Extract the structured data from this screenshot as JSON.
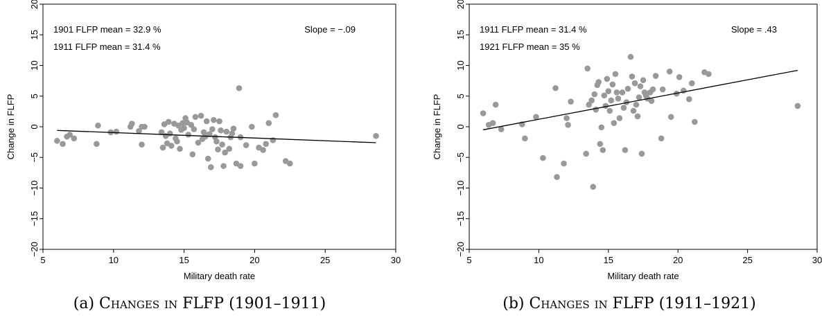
{
  "chart_data": [
    {
      "id": "a",
      "type": "scatter",
      "xlabel": "Military death rate",
      "ylabel": "Change in FLFP",
      "xlim": [
        5,
        30
      ],
      "ylim": [
        -20,
        20
      ],
      "xticks": [
        5,
        10,
        15,
        20,
        25,
        30
      ],
      "yticks": [
        -20,
        -15,
        -10,
        -5,
        0,
        5,
        10,
        15,
        20
      ],
      "annotations": {
        "mean1": "1901 FLFP mean = 32.9 %",
        "mean2": "1911 FLFP mean = 31.4 %",
        "slope": "Slope = −.09"
      },
      "fit_line": {
        "x": [
          6.0,
          28.6
        ],
        "y": [
          -0.6,
          -2.6
        ]
      },
      "points": [
        [
          6.0,
          -2.3
        ],
        [
          6.4,
          -2.8
        ],
        [
          6.7,
          -1.6
        ],
        [
          6.9,
          -1.3
        ],
        [
          7.2,
          -1.9
        ],
        [
          8.8,
          -2.8
        ],
        [
          8.9,
          0.2
        ],
        [
          9.8,
          -0.9
        ],
        [
          10.2,
          -0.8
        ],
        [
          11.2,
          0.0
        ],
        [
          11.3,
          0.5
        ],
        [
          11.8,
          -0.7
        ],
        [
          12.0,
          -2.9
        ],
        [
          12.0,
          0.0
        ],
        [
          12.2,
          0.0
        ],
        [
          13.4,
          -0.9
        ],
        [
          13.5,
          -3.4
        ],
        [
          13.6,
          0.4
        ],
        [
          13.7,
          -1.5
        ],
        [
          13.8,
          -2.7
        ],
        [
          13.9,
          0.8
        ],
        [
          14.0,
          -1.1
        ],
        [
          14.1,
          -3.1
        ],
        [
          14.3,
          0.5
        ],
        [
          14.4,
          -1.9
        ],
        [
          14.5,
          -2.4
        ],
        [
          14.6,
          0.2
        ],
        [
          14.7,
          -3.6
        ],
        [
          14.8,
          -0.5
        ],
        [
          14.9,
          0.6
        ],
        [
          15.0,
          -0.2
        ],
        [
          15.1,
          1.4
        ],
        [
          15.2,
          0.7
        ],
        [
          15.3,
          -1.3
        ],
        [
          15.5,
          0.3
        ],
        [
          15.6,
          -4.5
        ],
        [
          15.7,
          -0.4
        ],
        [
          15.8,
          1.6
        ],
        [
          16.0,
          -2.6
        ],
        [
          16.2,
          1.8
        ],
        [
          16.3,
          -2.0
        ],
        [
          16.4,
          -0.9
        ],
        [
          16.5,
          -1.6
        ],
        [
          16.6,
          0.9
        ],
        [
          16.7,
          -5.2
        ],
        [
          16.8,
          -1.2
        ],
        [
          16.9,
          -6.6
        ],
        [
          17.0,
          -0.4
        ],
        [
          17.1,
          1.1
        ],
        [
          17.2,
          -1.7
        ],
        [
          17.3,
          -2.4
        ],
        [
          17.4,
          -3.7
        ],
        [
          17.5,
          0.9
        ],
        [
          17.6,
          -0.6
        ],
        [
          17.7,
          -2.9
        ],
        [
          17.8,
          -6.4
        ],
        [
          17.9,
          -4.2
        ],
        [
          18.0,
          -0.8
        ],
        [
          18.2,
          -3.6
        ],
        [
          18.3,
          -1.7
        ],
        [
          18.4,
          -1.1
        ],
        [
          18.5,
          -0.3
        ],
        [
          18.7,
          -6.0
        ],
        [
          18.9,
          6.3
        ],
        [
          19.0,
          -6.4
        ],
        [
          19.0,
          -1.7
        ],
        [
          19.4,
          -3.0
        ],
        [
          19.8,
          0.0
        ],
        [
          20.0,
          -6.0
        ],
        [
          20.3,
          -3.4
        ],
        [
          20.6,
          -3.8
        ],
        [
          20.8,
          -2.8
        ],
        [
          21.0,
          0.6
        ],
        [
          21.3,
          -2.2
        ],
        [
          21.5,
          1.9
        ],
        [
          22.2,
          -5.6
        ],
        [
          22.5,
          -6.0
        ],
        [
          28.6,
          -1.5
        ]
      ]
    },
    {
      "id": "b",
      "type": "scatter",
      "xlabel": "Military death rate",
      "ylabel": "Change in FLFP",
      "xlim": [
        5,
        30
      ],
      "ylim": [
        -20,
        20
      ],
      "xticks": [
        5,
        10,
        15,
        20,
        25,
        30
      ],
      "yticks": [
        -20,
        -15,
        -10,
        -5,
        0,
        5,
        10,
        15,
        20
      ],
      "annotations": {
        "mean1": "1911 FLFP mean = 31.4 %",
        "mean2": "1921 FLFP mean = 35 %",
        "slope": "Slope = .43"
      },
      "fit_line": {
        "x": [
          6.0,
          28.6
        ],
        "y": [
          -0.5,
          9.2
        ]
      },
      "points": [
        [
          6.0,
          2.2
        ],
        [
          6.4,
          0.3
        ],
        [
          6.7,
          0.6
        ],
        [
          6.9,
          3.6
        ],
        [
          7.3,
          -0.4
        ],
        [
          8.8,
          0.4
        ],
        [
          9.0,
          -1.9
        ],
        [
          9.8,
          1.6
        ],
        [
          10.3,
          -5.1
        ],
        [
          11.2,
          6.3
        ],
        [
          11.3,
          -8.2
        ],
        [
          11.8,
          -6.0
        ],
        [
          12.0,
          1.4
        ],
        [
          12.1,
          0.3
        ],
        [
          12.3,
          4.1
        ],
        [
          13.4,
          -4.4
        ],
        [
          13.5,
          9.5
        ],
        [
          13.6,
          3.6
        ],
        [
          13.8,
          4.3
        ],
        [
          13.9,
          -9.8
        ],
        [
          14.0,
          5.3
        ],
        [
          14.1,
          2.8
        ],
        [
          14.2,
          6.8
        ],
        [
          14.3,
          7.3
        ],
        [
          14.4,
          -2.8
        ],
        [
          14.5,
          -0.1
        ],
        [
          14.6,
          -3.8
        ],
        [
          14.7,
          5.1
        ],
        [
          14.8,
          3.4
        ],
        [
          14.9,
          7.8
        ],
        [
          15.0,
          5.8
        ],
        [
          15.1,
          2.6
        ],
        [
          15.2,
          4.3
        ],
        [
          15.3,
          6.9
        ],
        [
          15.4,
          0.6
        ],
        [
          15.5,
          8.6
        ],
        [
          15.6,
          5.6
        ],
        [
          15.7,
          4.6
        ],
        [
          15.8,
          1.4
        ],
        [
          16.0,
          5.6
        ],
        [
          16.1,
          3.1
        ],
        [
          16.2,
          -3.8
        ],
        [
          16.3,
          4.0
        ],
        [
          16.4,
          6.2
        ],
        [
          16.6,
          11.4
        ],
        [
          16.7,
          8.2
        ],
        [
          16.8,
          2.6
        ],
        [
          16.9,
          7.1
        ],
        [
          17.0,
          3.6
        ],
        [
          17.1,
          1.7
        ],
        [
          17.2,
          4.8
        ],
        [
          17.3,
          6.6
        ],
        [
          17.4,
          -4.4
        ],
        [
          17.5,
          7.6
        ],
        [
          17.6,
          5.6
        ],
        [
          17.7,
          5.1
        ],
        [
          17.8,
          4.6
        ],
        [
          18.0,
          5.6
        ],
        [
          18.1,
          4.2
        ],
        [
          18.2,
          6.1
        ],
        [
          18.4,
          8.3
        ],
        [
          18.8,
          -1.9
        ],
        [
          18.9,
          6.1
        ],
        [
          19.4,
          9.0
        ],
        [
          19.5,
          1.6
        ],
        [
          19.9,
          5.4
        ],
        [
          20.1,
          8.1
        ],
        [
          20.4,
          5.9
        ],
        [
          20.8,
          4.5
        ],
        [
          21.0,
          7.1
        ],
        [
          21.2,
          0.8
        ],
        [
          21.9,
          8.9
        ],
        [
          22.2,
          8.6
        ],
        [
          28.6,
          3.4
        ]
      ]
    }
  ],
  "captions": {
    "a_prefix": "(a)",
    "a_sc": "Changes in",
    "a_rest": "FLFP (1901–1911)",
    "b_prefix": "(b)",
    "b_sc": "Changes in",
    "b_rest": "FLFP (1911–1921)"
  }
}
